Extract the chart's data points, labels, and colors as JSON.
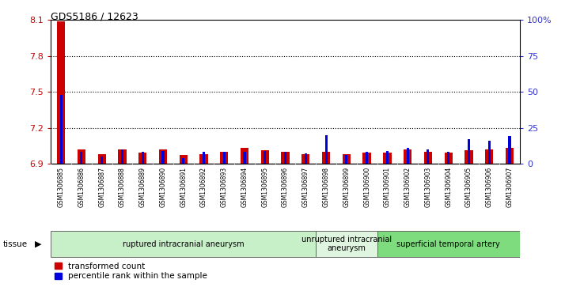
{
  "title": "GDS5186 / 12623",
  "samples": [
    "GSM1306885",
    "GSM1306886",
    "GSM1306887",
    "GSM1306888",
    "GSM1306889",
    "GSM1306890",
    "GSM1306891",
    "GSM1306892",
    "GSM1306893",
    "GSM1306894",
    "GSM1306895",
    "GSM1306896",
    "GSM1306897",
    "GSM1306898",
    "GSM1306899",
    "GSM1306900",
    "GSM1306901",
    "GSM1306902",
    "GSM1306903",
    "GSM1306904",
    "GSM1306905",
    "GSM1306906",
    "GSM1306907"
  ],
  "red_values": [
    8.09,
    7.02,
    6.98,
    7.02,
    6.99,
    7.02,
    6.97,
    6.98,
    7.0,
    7.03,
    7.01,
    7.0,
    6.98,
    7.0,
    6.98,
    6.99,
    6.99,
    7.02,
    7.0,
    6.99,
    7.01,
    7.02,
    7.03
  ],
  "blue_percentile": [
    48,
    8,
    5,
    10,
    8,
    9,
    4,
    8,
    8,
    8,
    9,
    8,
    7,
    20,
    6,
    8,
    9,
    11,
    10,
    8,
    17,
    16,
    19
  ],
  "y_min": 6.9,
  "y_max": 8.1,
  "y_ticks": [
    6.9,
    7.2,
    7.5,
    7.8,
    8.1
  ],
  "y_ticks_labels": [
    "6.9",
    "7.2",
    "7.5",
    "7.8",
    "8.1"
  ],
  "right_ticks": [
    0,
    25,
    50,
    75,
    100
  ],
  "right_labels": [
    "0",
    "25",
    "50",
    "75",
    "100%"
  ],
  "tissue_groups": [
    {
      "label": "ruptured intracranial aneurysm",
      "start": 0,
      "end": 13,
      "color": "#c8f0c8"
    },
    {
      "label": "unruptured intracranial\naneurysm",
      "start": 13,
      "end": 16,
      "color": "#e0f5e0"
    },
    {
      "label": "superficial temporal artery",
      "start": 16,
      "end": 23,
      "color": "#7edc7e"
    }
  ],
  "bar_color_red": "#cc0000",
  "bar_color_blue": "#0000dd",
  "tick_bg_color": "#cccccc",
  "grid_color": "#000000",
  "grid_linestyle": "dotted",
  "grid_linewidth": 0.8,
  "grid_yticks": [
    7.2,
    7.5,
    7.8
  ]
}
